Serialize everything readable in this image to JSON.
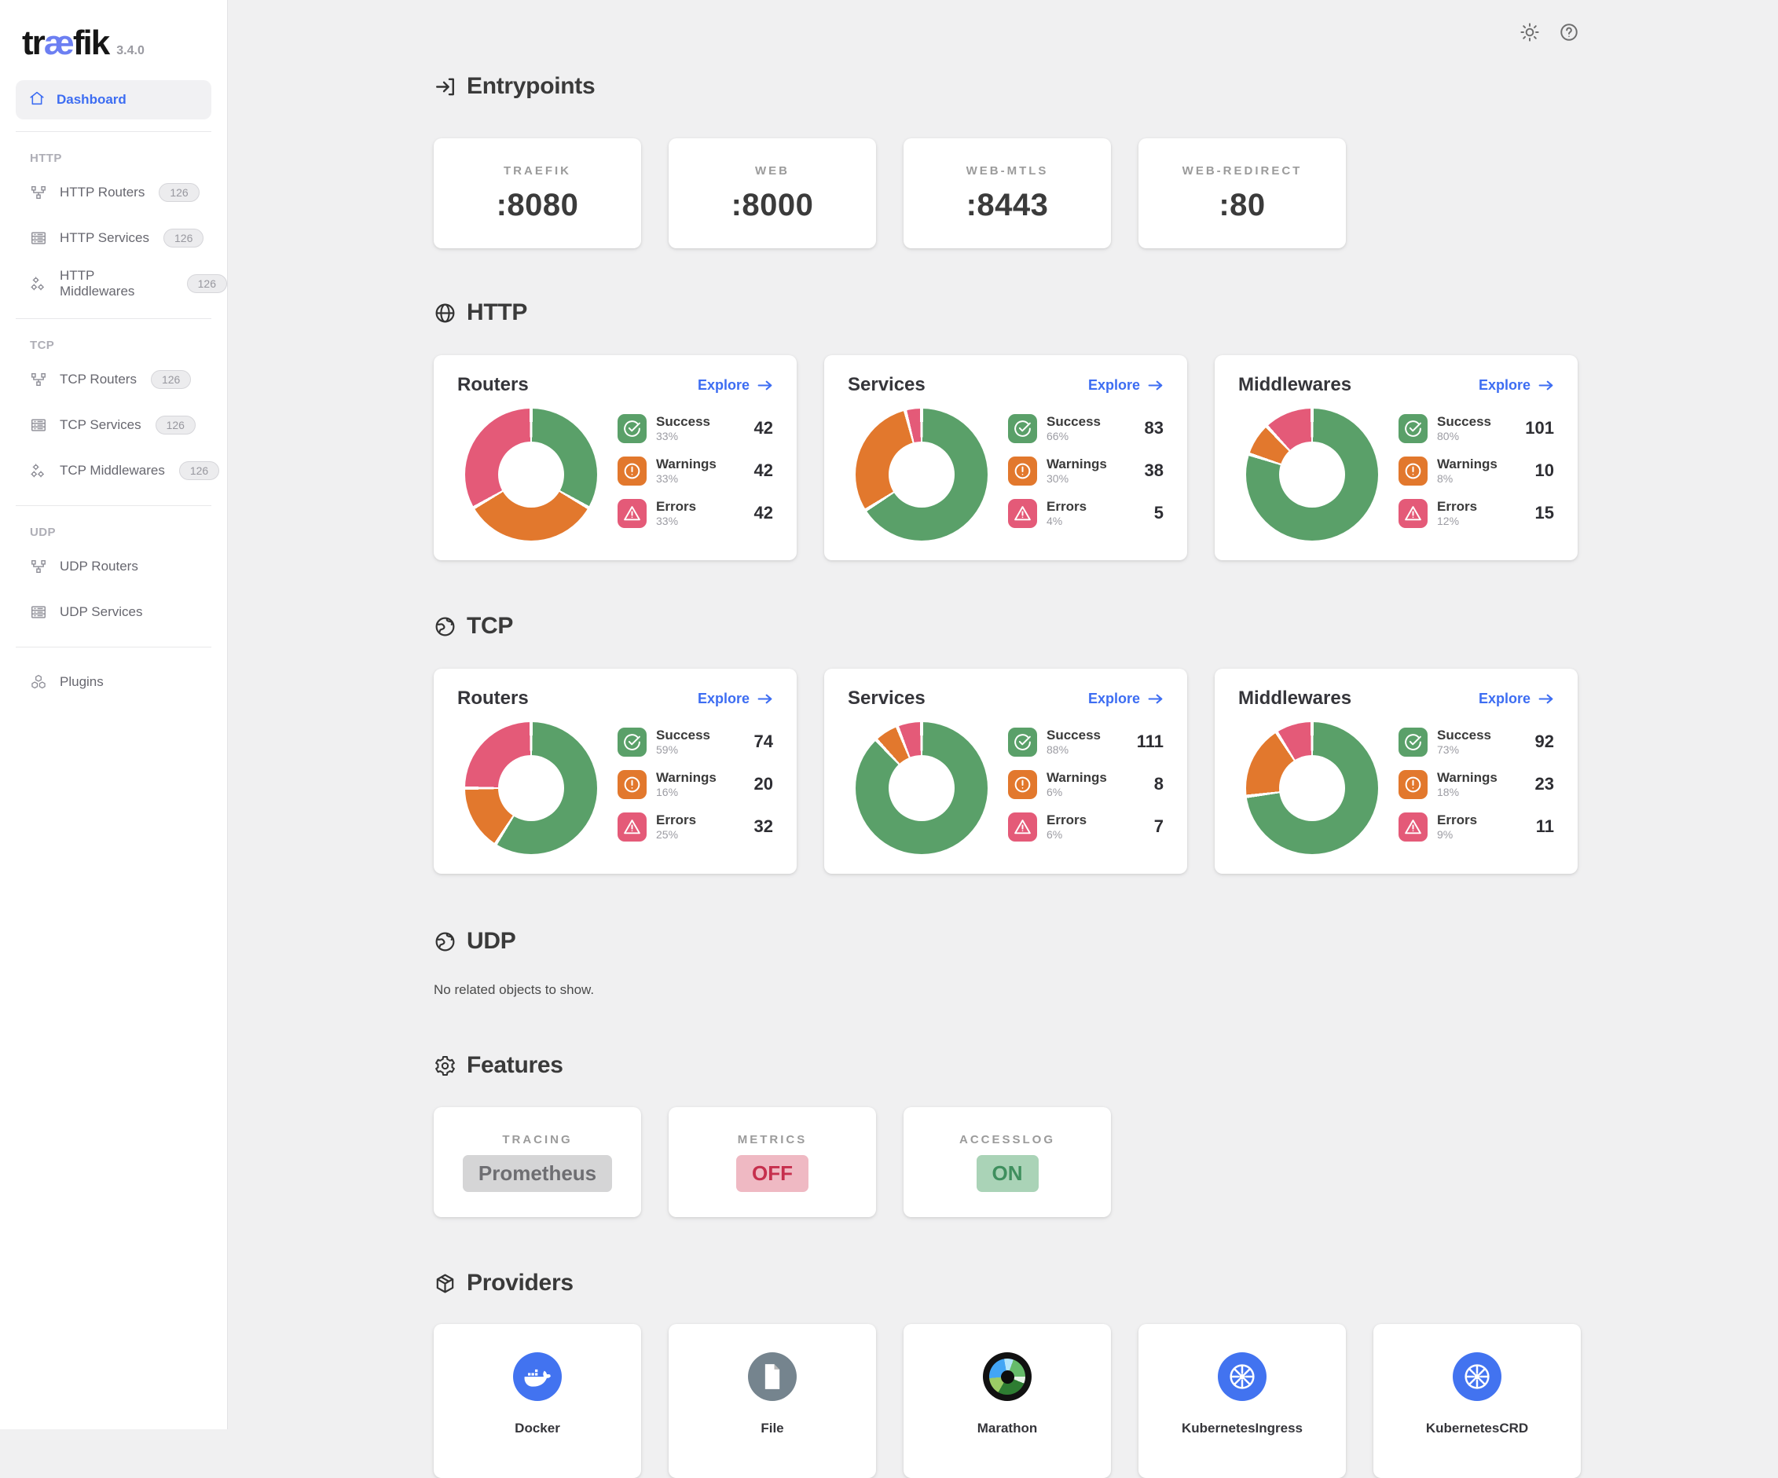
{
  "app": {
    "logo": {
      "pre": "tr",
      "mid": "æ",
      "post": "fik"
    },
    "version": "3.4.0"
  },
  "sidebar": {
    "dashboard_label": "Dashboard",
    "plugins_label": "Plugins",
    "groups": [
      {
        "label": "HTTP",
        "items": [
          {
            "label": "HTTP Routers",
            "badge": "126",
            "icon": "routers"
          },
          {
            "label": "HTTP Services",
            "badge": "126",
            "icon": "services"
          },
          {
            "label": "HTTP Middlewares",
            "badge": "126",
            "icon": "middlewares"
          }
        ]
      },
      {
        "label": "TCP",
        "items": [
          {
            "label": "TCP Routers",
            "badge": "126",
            "icon": "routers"
          },
          {
            "label": "TCP Services",
            "badge": "126",
            "icon": "services"
          },
          {
            "label": "TCP Middlewares",
            "badge": "126",
            "icon": "middlewares"
          }
        ]
      },
      {
        "label": "UDP",
        "items": [
          {
            "label": "UDP Routers",
            "badge": null,
            "icon": "routers"
          },
          {
            "label": "UDP Services",
            "badge": null,
            "icon": "services"
          }
        ]
      }
    ]
  },
  "entrypoints": {
    "title": "Entrypoints",
    "cards": [
      {
        "label": "TRAEFIK",
        "port": ":8080"
      },
      {
        "label": "WEB",
        "port": ":8000"
      },
      {
        "label": "WEB-MTLS",
        "port": ":8443"
      },
      {
        "label": "WEB-REDIRECT",
        "port": ":80"
      }
    ]
  },
  "sections": [
    {
      "id": "http",
      "title": "HTTP",
      "cards": [
        {
          "title": "Routers",
          "explore": "Explore",
          "stats": [
            {
              "kind": "success",
              "label": "Success",
              "pct": 33,
              "pct_label": "33%",
              "value": "42"
            },
            {
              "kind": "warning",
              "label": "Warnings",
              "pct": 33,
              "pct_label": "33%",
              "value": "42"
            },
            {
              "kind": "error",
              "label": "Errors",
              "pct": 33,
              "pct_label": "33%",
              "value": "42"
            }
          ]
        },
        {
          "title": "Services",
          "explore": "Explore",
          "stats": [
            {
              "kind": "success",
              "label": "Success",
              "pct": 66,
              "pct_label": "66%",
              "value": "83"
            },
            {
              "kind": "warning",
              "label": "Warnings",
              "pct": 30,
              "pct_label": "30%",
              "value": "38"
            },
            {
              "kind": "error",
              "label": "Errors",
              "pct": 4,
              "pct_label": "4%",
              "value": "5"
            }
          ]
        },
        {
          "title": "Middlewares",
          "explore": "Explore",
          "stats": [
            {
              "kind": "success",
              "label": "Success",
              "pct": 80,
              "pct_label": "80%",
              "value": "101"
            },
            {
              "kind": "warning",
              "label": "Warnings",
              "pct": 8,
              "pct_label": "8%",
              "value": "10"
            },
            {
              "kind": "error",
              "label": "Errors",
              "pct": 12,
              "pct_label": "12%",
              "value": "15"
            }
          ]
        }
      ]
    },
    {
      "id": "tcp",
      "title": "TCP",
      "cards": [
        {
          "title": "Routers",
          "explore": "Explore",
          "stats": [
            {
              "kind": "success",
              "label": "Success",
              "pct": 59,
              "pct_label": "59%",
              "value": "74"
            },
            {
              "kind": "warning",
              "label": "Warnings",
              "pct": 16,
              "pct_label": "16%",
              "value": "20"
            },
            {
              "kind": "error",
              "label": "Errors",
              "pct": 25,
              "pct_label": "25%",
              "value": "32"
            }
          ]
        },
        {
          "title": "Services",
          "explore": "Explore",
          "stats": [
            {
              "kind": "success",
              "label": "Success",
              "pct": 88,
              "pct_label": "88%",
              "value": "111"
            },
            {
              "kind": "warning",
              "label": "Warnings",
              "pct": 6,
              "pct_label": "6%",
              "value": "8"
            },
            {
              "kind": "error",
              "label": "Errors",
              "pct": 6,
              "pct_label": "6%",
              "value": "7"
            }
          ]
        },
        {
          "title": "Middlewares",
          "explore": "Explore",
          "stats": [
            {
              "kind": "success",
              "label": "Success",
              "pct": 73,
              "pct_label": "73%",
              "value": "92"
            },
            {
              "kind": "warning",
              "label": "Warnings",
              "pct": 18,
              "pct_label": "18%",
              "value": "23"
            },
            {
              "kind": "error",
              "label": "Errors",
              "pct": 9,
              "pct_label": "9%",
              "value": "11"
            }
          ]
        }
      ]
    }
  ],
  "udp": {
    "title": "UDP",
    "empty_message": "No related objects to show."
  },
  "features": {
    "title": "Features",
    "cards": [
      {
        "label": "TRACING",
        "value": "Prometheus",
        "state": "neutral"
      },
      {
        "label": "METRICS",
        "value": "OFF",
        "state": "off"
      },
      {
        "label": "ACCESSLOG",
        "value": "ON",
        "state": "on"
      }
    ]
  },
  "providers": {
    "title": "Providers",
    "cards": [
      {
        "label": "Docker",
        "icon": "docker",
        "color": "#4273F0"
      },
      {
        "label": "File",
        "icon": "file",
        "color": "#75848E"
      },
      {
        "label": "Marathon",
        "icon": "marathon",
        "color": "#111111"
      },
      {
        "label": "KubernetesIngress",
        "icon": "kubernetes",
        "color": "#4273F0"
      },
      {
        "label": "KubernetesCRD",
        "icon": "kubernetes",
        "color": "#4273F0"
      }
    ]
  },
  "colors": {
    "success": "#5AA069",
    "warning": "#E2782D",
    "error": "#E45A78",
    "link": "#3D6DF2",
    "logo_accent": "#6C7FF2"
  }
}
